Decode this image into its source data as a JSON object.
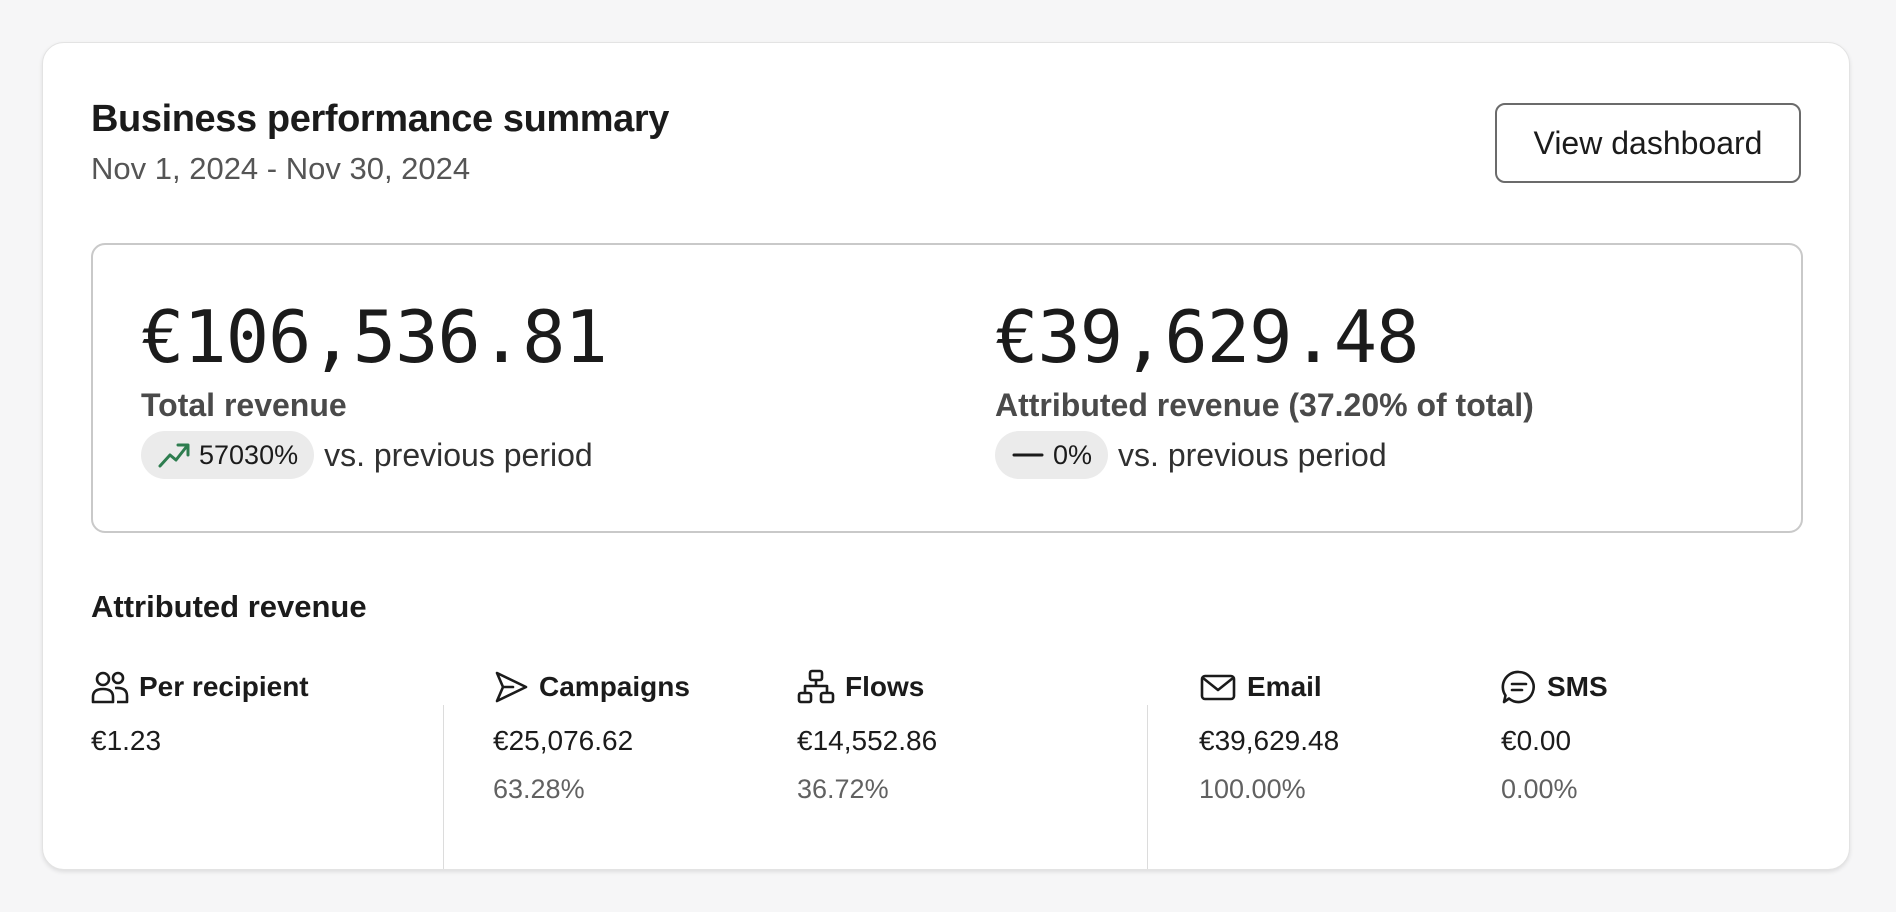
{
  "header": {
    "title": "Business performance summary",
    "date_range": "Nov 1, 2024 - Nov 30, 2024",
    "view_dashboard_label": "View dashboard"
  },
  "kpis": {
    "total": {
      "value": "€106,536.81",
      "label": "Total revenue",
      "change": "57030%",
      "change_icon": "trend-up-icon",
      "compare_text": "vs. previous period"
    },
    "attributed": {
      "value": "€39,629.48",
      "label": "Attributed revenue (37.20% of total)",
      "change": "0%",
      "change_icon": "dash-icon",
      "compare_text": "vs. previous period"
    }
  },
  "attributed_section": {
    "title": "Attributed revenue",
    "per_recipient": {
      "label": "Per recipient",
      "icon": "users-icon",
      "value": "€1.23"
    },
    "campaigns": {
      "label": "Campaigns",
      "icon": "send-icon",
      "value": "€25,076.62",
      "pct": "63.28%"
    },
    "flows": {
      "label": "Flows",
      "icon": "flow-icon",
      "value": "€14,552.86",
      "pct": "36.72%"
    },
    "email": {
      "label": "Email",
      "icon": "mail-icon",
      "value": "€39,629.48",
      "pct": "100.00%"
    },
    "sms": {
      "label": "SMS",
      "icon": "chat-icon",
      "value": "€0.00",
      "pct": "0.00%"
    }
  },
  "colors": {
    "trend_up": "#2e7d4f",
    "pill_bg": "#ebebeb",
    "border": "#c9c9c9"
  }
}
